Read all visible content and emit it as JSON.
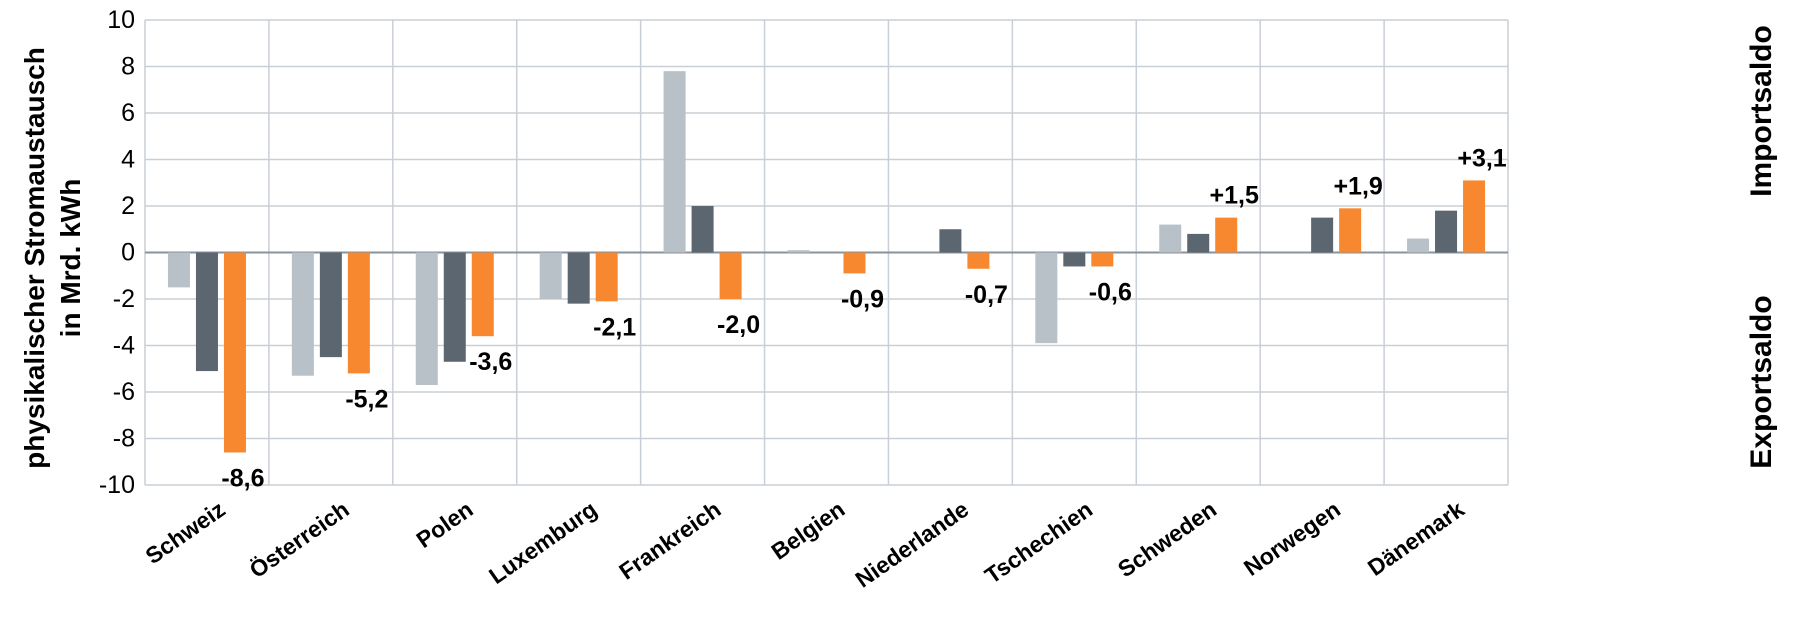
{
  "chart_data": {
    "type": "bar",
    "categories": [
      "Schweiz",
      "Österreich",
      "Polen",
      "Luxemburg",
      "Frankreich",
      "Belgien",
      "Niederlande",
      "Tschechien",
      "Schweden",
      "Norwegen",
      "Dänemark"
    ],
    "series": [
      {
        "values": [
          -1.5,
          -5.3,
          -5.7,
          -2.0,
          7.8,
          0.1,
          0.0,
          -3.9,
          1.2,
          0.0,
          0.6
        ],
        "color": "#b8c0c8"
      },
      {
        "values": [
          -5.1,
          -4.5,
          -4.7,
          -2.2,
          2.0,
          0.0,
          1.0,
          -0.6,
          0.8,
          1.5,
          1.8
        ],
        "color": "#5b6671"
      },
      {
        "values": [
          -8.6,
          -5.2,
          -3.6,
          -2.1,
          -2.0,
          -0.9,
          -0.7,
          -0.6,
          1.5,
          1.9,
          3.1
        ],
        "color": "#f7882f"
      }
    ],
    "data_labels": [
      "-8,6",
      "-5,2",
      "-3,6",
      "-2,1",
      "-2,0",
      "-0,9",
      "-0,7",
      "-0,6",
      "+1,5",
      "+1,9",
      "+3,1"
    ],
    "ylabel_line1": "physikalischer Stromaustausch",
    "ylabel_line2": "in Mrd. kWh",
    "right_label_top": "Importsaldo",
    "right_label_bottom": "Exportsaldo",
    "ylim": [
      -10,
      10
    ],
    "yticks": [
      10,
      8,
      6,
      4,
      2,
      0,
      -2,
      -4,
      -6,
      -8,
      -10
    ],
    "grid": true,
    "gridColor": "#c8cfd6"
  }
}
